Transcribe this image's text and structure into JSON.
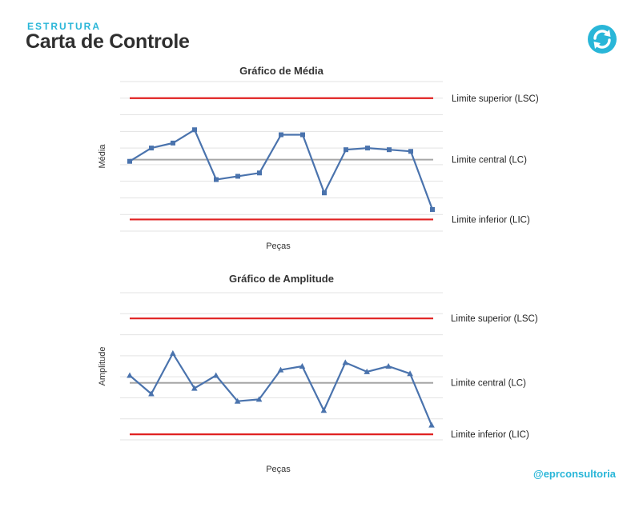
{
  "header": {
    "eyebrow": "ESTRUTURA",
    "title": "Carta de Controle"
  },
  "footer": {
    "handle": "@eprconsultoria"
  },
  "colors": {
    "accent": "#29b6d8",
    "series": "#4a73ad",
    "limit_line": "#e02020",
    "center_line": "#a6a6a6",
    "grid": "#e3e3e3"
  },
  "chart_data": [
    {
      "type": "line",
      "title": "Gráfico de Média",
      "xlabel": "Peças",
      "ylabel": "Média",
      "marker": "square",
      "ylim": [
        0,
        9
      ],
      "x": [
        1,
        2,
        3,
        4,
        5,
        6,
        7,
        8,
        9,
        10,
        11,
        12,
        13,
        14,
        15
      ],
      "series": [
        {
          "values": [
            4.2,
            5.0,
            5.3,
            6.1,
            3.1,
            3.3,
            3.5,
            5.8,
            5.8,
            2.3,
            4.9,
            5.0,
            4.9,
            4.8,
            1.3
          ]
        }
      ],
      "limits": {
        "upper": {
          "value": 8.0,
          "label": "Limite superior (LSC)"
        },
        "center": {
          "value": 4.3,
          "label": "Limite central (LC)"
        },
        "lower": {
          "value": 0.7,
          "label": "Limite inferior (LIC)"
        }
      },
      "grid": true
    },
    {
      "type": "line",
      "title": "Gráfico de Amplitude",
      "xlabel": "Peças",
      "ylabel": "Amplitude",
      "marker": "triangle",
      "ylim": [
        0,
        8
      ],
      "x": [
        1,
        2,
        3,
        4,
        5,
        6,
        7,
        8,
        9,
        10,
        11,
        12,
        13,
        14,
        15
      ],
      "series": [
        {
          "values": [
            3.5,
            2.5,
            4.7,
            2.8,
            3.5,
            2.1,
            2.2,
            3.8,
            4.0,
            1.6,
            4.2,
            3.7,
            4.0,
            3.6,
            0.8
          ]
        }
      ],
      "limits": {
        "upper": {
          "value": 6.6,
          "label": "Limite superior (LSC)"
        },
        "center": {
          "value": 3.1,
          "label": "Limite central (LC)"
        },
        "lower": {
          "value": 0.3,
          "label": "Limite inferior (LIC)"
        }
      },
      "grid": true
    }
  ]
}
